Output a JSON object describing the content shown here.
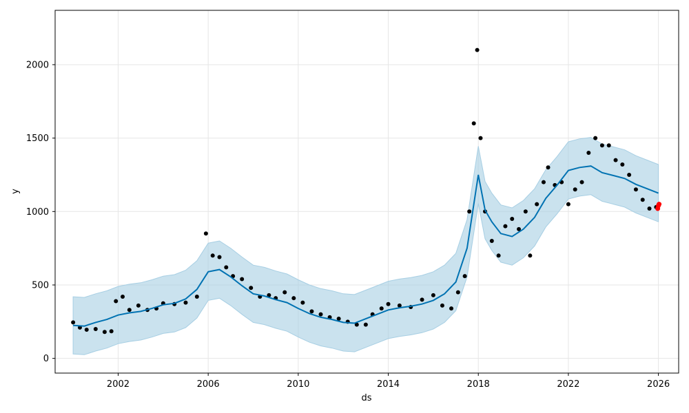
{
  "chart_data": {
    "type": "line",
    "title": "",
    "xlabel": "ds",
    "ylabel": "y",
    "xlim": [
      1999.2,
      2026.9
    ],
    "ylim": [
      -100,
      2370
    ],
    "x_ticks": [
      2002,
      2006,
      2010,
      2014,
      2018,
      2022,
      2026
    ],
    "x_tick_labels": [
      "2002",
      "2006",
      "2010",
      "2014",
      "2018",
      "2022",
      "2026"
    ],
    "y_ticks": [
      0,
      500,
      1000,
      1500,
      2000
    ],
    "y_tick_labels": [
      "0",
      "500",
      "1000",
      "1500",
      "2000"
    ],
    "grid": true,
    "legend": "none",
    "colors": {
      "forecast": "#0072B2",
      "interval": "#A6CEE3",
      "observed": "#000000",
      "recent": "#FF0000"
    },
    "series": [
      {
        "role": "forecast",
        "x": [
          2000.0,
          2000.5,
          2001.0,
          2001.5,
          2002.0,
          2002.5,
          2003.0,
          2003.5,
          2004.0,
          2004.5,
          2005.0,
          2005.5,
          2006.0,
          2006.5,
          2007.0,
          2007.5,
          2008.0,
          2008.5,
          2009.0,
          2009.5,
          2010.0,
          2010.5,
          2011.0,
          2011.5,
          2012.0,
          2012.5,
          2013.0,
          2013.5,
          2014.0,
          2014.5,
          2015.0,
          2015.5,
          2016.0,
          2016.5,
          2017.0,
          2017.5,
          2018.0,
          2018.3,
          2018.6,
          2019.0,
          2019.5,
          2020.0,
          2020.5,
          2021.0,
          2021.5,
          2022.0,
          2022.5,
          2023.0,
          2023.5,
          2024.0,
          2024.5,
          2025.0,
          2025.5,
          2026.0
        ],
        "values": [
          225,
          220,
          245,
          265,
          295,
          310,
          320,
          340,
          365,
          375,
          405,
          470,
          590,
          605,
          555,
          495,
          440,
          425,
          400,
          380,
          340,
          305,
          280,
          265,
          245,
          240,
          270,
          300,
          330,
          345,
          355,
          370,
          395,
          440,
          520,
          750,
          1250,
          1010,
          930,
          850,
          830,
          880,
          960,
          1090,
          1180,
          1280,
          1300,
          1310,
          1265,
          1245,
          1225,
          1185,
          1155,
          1125
        ]
      },
      {
        "role": "interval_upper",
        "x": [
          2000.0,
          2000.5,
          2001.0,
          2001.5,
          2002.0,
          2002.5,
          2003.0,
          2003.5,
          2004.0,
          2004.5,
          2005.0,
          2005.5,
          2006.0,
          2006.5,
          2007.0,
          2007.5,
          2008.0,
          2008.5,
          2009.0,
          2009.5,
          2010.0,
          2010.5,
          2011.0,
          2011.5,
          2012.0,
          2012.5,
          2013.0,
          2013.5,
          2014.0,
          2014.5,
          2015.0,
          2015.5,
          2016.0,
          2016.5,
          2017.0,
          2017.5,
          2018.0,
          2018.3,
          2018.6,
          2019.0,
          2019.5,
          2020.0,
          2020.5,
          2021.0,
          2021.5,
          2022.0,
          2022.5,
          2023.0,
          2023.5,
          2024.0,
          2024.5,
          2025.0,
          2025.5,
          2026.0
        ],
        "values": [
          420,
          415,
          440,
          460,
          490,
          505,
          515,
          535,
          560,
          570,
          600,
          665,
          785,
          800,
          750,
          690,
          635,
          620,
          595,
          575,
          535,
          500,
          475,
          460,
          440,
          435,
          465,
          495,
          525,
          540,
          550,
          565,
          590,
          635,
          715,
          945,
          1445,
          1205,
          1125,
          1045,
          1025,
          1075,
          1155,
          1285,
          1375,
          1475,
          1495,
          1505,
          1460,
          1440,
          1420,
          1380,
          1350,
          1320
        ]
      },
      {
        "role": "interval_lower",
        "x": [
          2000.0,
          2000.5,
          2001.0,
          2001.5,
          2002.0,
          2002.5,
          2003.0,
          2003.5,
          2004.0,
          2004.5,
          2005.0,
          2005.5,
          2006.0,
          2006.5,
          2007.0,
          2007.5,
          2008.0,
          2008.5,
          2009.0,
          2009.5,
          2010.0,
          2010.5,
          2011.0,
          2011.5,
          2012.0,
          2012.5,
          2013.0,
          2013.5,
          2014.0,
          2014.5,
          2015.0,
          2015.5,
          2016.0,
          2016.5,
          2017.0,
          2017.5,
          2018.0,
          2018.3,
          2018.6,
          2019.0,
          2019.5,
          2020.0,
          2020.5,
          2021.0,
          2021.5,
          2022.0,
          2022.5,
          2023.0,
          2023.5,
          2024.0,
          2024.5,
          2025.0,
          2025.5,
          2026.0
        ],
        "values": [
          30,
          25,
          50,
          70,
          100,
          115,
          125,
          145,
          170,
          180,
          210,
          275,
          395,
          410,
          360,
          300,
          245,
          230,
          205,
          185,
          145,
          110,
          85,
          70,
          50,
          45,
          75,
          105,
          135,
          150,
          160,
          175,
          200,
          245,
          325,
          555,
          1055,
          815,
          735,
          655,
          635,
          685,
          765,
          895,
          985,
          1085,
          1105,
          1115,
          1070,
          1050,
          1030,
          990,
          960,
          930
        ]
      },
      {
        "role": "observed",
        "x": [
          2000.0,
          2000.3,
          2000.6,
          2001.0,
          2001.4,
          2001.7,
          2001.9,
          2002.2,
          2002.5,
          2002.9,
          2003.3,
          2003.7,
          2004.0,
          2004.5,
          2005.0,
          2005.5,
          2005.9,
          2006.2,
          2006.5,
          2006.8,
          2007.1,
          2007.5,
          2007.9,
          2008.3,
          2008.7,
          2009.0,
          2009.4,
          2009.8,
          2010.2,
          2010.6,
          2011.0,
          2011.4,
          2011.8,
          2012.2,
          2012.6,
          2013.0,
          2013.3,
          2013.7,
          2014.0,
          2014.5,
          2015.0,
          2015.5,
          2016.0,
          2016.4,
          2016.8,
          2017.1,
          2017.4,
          2017.6,
          2017.8,
          2017.95,
          2018.1,
          2018.3,
          2018.6,
          2018.9,
          2019.2,
          2019.5,
          2019.8,
          2020.1,
          2020.3,
          2020.6,
          2020.9,
          2021.1,
          2021.4,
          2021.7,
          2022.0,
          2022.3,
          2022.6,
          2022.9,
          2023.2,
          2023.5,
          2023.8,
          2024.1,
          2024.4,
          2024.7,
          2025.0,
          2025.3,
          2025.6,
          2025.9
        ],
        "values": [
          245,
          210,
          195,
          200,
          180,
          185,
          390,
          420,
          330,
          360,
          330,
          340,
          375,
          370,
          380,
          420,
          850,
          700,
          690,
          620,
          560,
          540,
          480,
          420,
          430,
          410,
          450,
          410,
          380,
          320,
          300,
          280,
          270,
          250,
          230,
          230,
          300,
          340,
          370,
          360,
          350,
          400,
          430,
          360,
          340,
          450,
          560,
          1000,
          1600,
          2100,
          1500,
          1000,
          800,
          700,
          900,
          950,
          880,
          1000,
          700,
          1050,
          1200,
          1300,
          1180,
          1200,
          1050,
          1150,
          1200,
          1400,
          1500,
          1450,
          1450,
          1350,
          1320,
          1250,
          1150,
          1080,
          1020,
          1030
        ]
      },
      {
        "role": "recent",
        "x": [
          2025.97,
          2026.0,
          2026.03
        ],
        "values": [
          1020,
          1040,
          1050
        ]
      }
    ]
  }
}
